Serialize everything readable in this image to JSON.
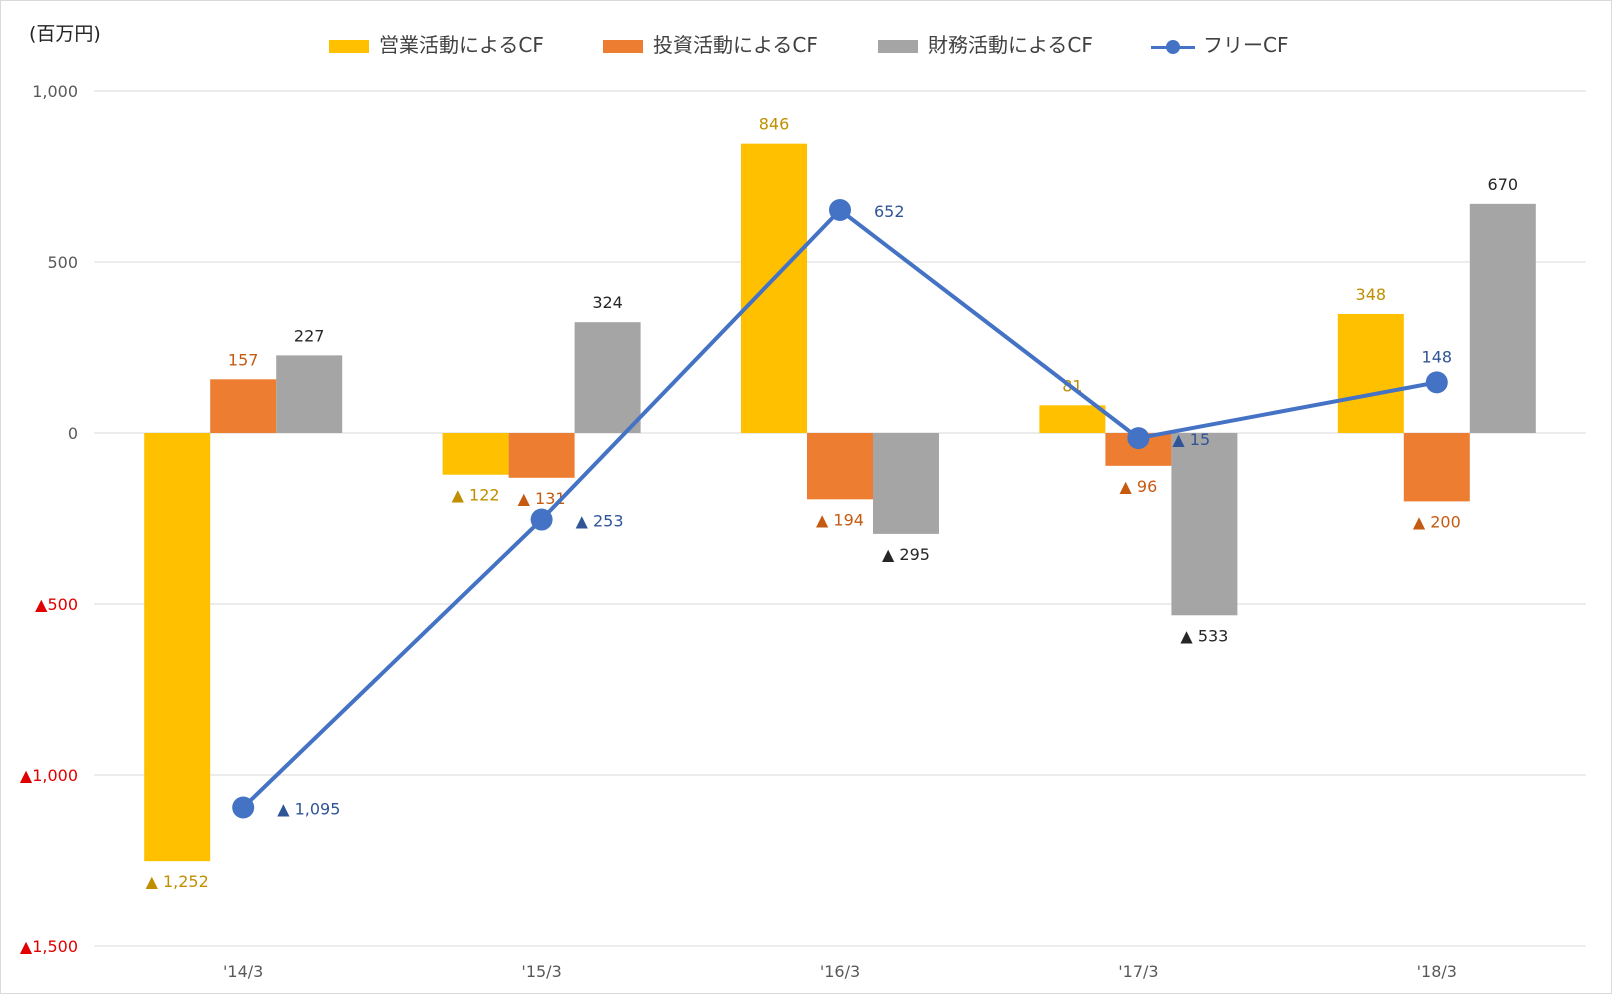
{
  "chart_data": {
    "type": "bar",
    "unit_label": "(百万円)",
    "categories": [
      "'14/3",
      "'15/3",
      "'16/3",
      "'17/3",
      "'18/3"
    ],
    "ylim": [
      -1500,
      1000
    ],
    "yticks": [
      1000,
      500,
      0,
      -500,
      -1000,
      -1500
    ],
    "ytick_labels": [
      "1,000",
      "500",
      "0",
      "▲500",
      "▲1,000",
      "▲1,500"
    ],
    "grid": true,
    "legend_position": "top",
    "series": [
      {
        "name": "営業活動によるCF",
        "type": "bar",
        "color": "#ffc000",
        "label_color": "#bf8f00",
        "values": [
          -1252,
          -122,
          846,
          81,
          348
        ],
        "labels": [
          "▲ 1,252",
          "▲ 122",
          "846",
          "81",
          "348"
        ]
      },
      {
        "name": "投資活動によるCF",
        "type": "bar",
        "color": "#ed7d31",
        "label_color": "#c55a11",
        "values": [
          157,
          -131,
          -194,
          -96,
          -200
        ],
        "labels": [
          "157",
          "▲ 131",
          "▲ 194",
          "▲ 96",
          "▲ 200"
        ]
      },
      {
        "name": "財務活動によるCF",
        "type": "bar",
        "color": "#a5a5a5",
        "label_color": "#262626",
        "values": [
          227,
          324,
          -295,
          -533,
          670
        ],
        "labels": [
          "227",
          "324",
          "▲ 295",
          "▲ 533",
          "670"
        ]
      },
      {
        "name": "フリーCF",
        "type": "line",
        "color": "#4472c4",
        "label_color": "#2f5597",
        "values": [
          -1095,
          -253,
          652,
          -15,
          148
        ],
        "labels": [
          "▲ 1,095",
          "▲ 253",
          "652",
          "▲ 15",
          "148"
        ]
      }
    ]
  },
  "colors": {
    "negative_tick": "#e00000",
    "tick": "#595959",
    "grid": "#d9d9d9"
  }
}
